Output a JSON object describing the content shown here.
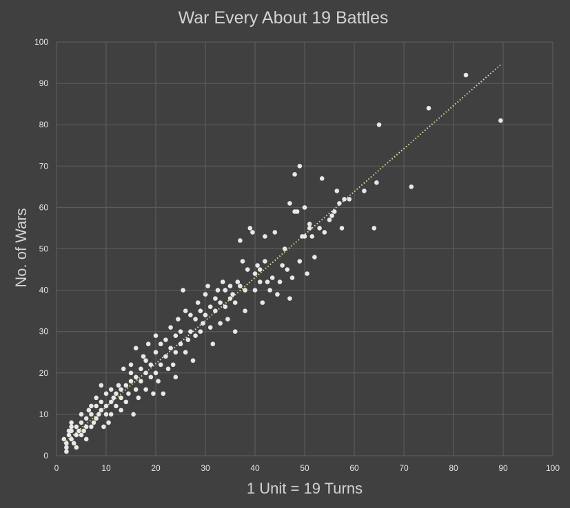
{
  "chart_data": {
    "type": "scatter",
    "title": "War Every About 19 Battles",
    "xlabel": "1 Unit = 19 Turns",
    "ylabel": "No. of Wars",
    "xlim": [
      0,
      100
    ],
    "ylim": [
      0,
      100
    ],
    "xticks": [
      "0",
      "10",
      "20",
      "30",
      "40",
      "50",
      "60",
      "70",
      "80",
      "90",
      "100"
    ],
    "yticks": [
      "0",
      "10",
      "20",
      "30",
      "40",
      "50",
      "60",
      "70",
      "80",
      "90",
      "100"
    ],
    "grid": true,
    "trendline": {
      "style": "dotted",
      "color": "#e6e0a0",
      "from": [
        1.5,
        3
      ],
      "to": [
        89.5,
        94.5
      ]
    },
    "point_color": "#e8e8e8",
    "series": [
      {
        "points": [
          [
            1.5,
            4
          ],
          [
            2,
            1
          ],
          [
            2,
            2
          ],
          [
            2,
            3
          ],
          [
            2.5,
            5
          ],
          [
            2.5,
            6
          ],
          [
            3,
            4
          ],
          [
            3,
            6
          ],
          [
            3,
            7
          ],
          [
            3,
            8
          ],
          [
            3.5,
            3
          ],
          [
            4,
            2
          ],
          [
            4,
            5
          ],
          [
            4,
            7
          ],
          [
            4.5,
            6
          ],
          [
            5,
            5
          ],
          [
            5,
            8
          ],
          [
            5,
            10
          ],
          [
            5.5,
            6
          ],
          [
            6,
            4
          ],
          [
            6,
            7
          ],
          [
            6,
            9
          ],
          [
            6.5,
            11
          ],
          [
            7,
            7
          ],
          [
            7,
            10
          ],
          [
            7,
            12
          ],
          [
            7.5,
            8
          ],
          [
            8,
            9
          ],
          [
            8,
            12
          ],
          [
            8,
            14
          ],
          [
            8.5,
            10
          ],
          [
            9,
            11
          ],
          [
            9,
            13
          ],
          [
            9,
            17
          ],
          [
            9.5,
            7
          ],
          [
            10,
            10
          ],
          [
            10,
            12
          ],
          [
            10,
            15
          ],
          [
            10.5,
            8
          ],
          [
            11,
            13
          ],
          [
            11,
            16
          ],
          [
            11,
            10
          ],
          [
            11.5,
            14
          ],
          [
            12,
            12
          ],
          [
            12,
            15
          ],
          [
            12.5,
            17
          ],
          [
            13,
            11
          ],
          [
            13,
            14
          ],
          [
            13,
            16
          ],
          [
            13.5,
            21
          ],
          [
            14,
            13
          ],
          [
            14,
            17
          ],
          [
            14.5,
            15
          ],
          [
            15,
            18
          ],
          [
            15,
            20
          ],
          [
            15,
            22
          ],
          [
            15.5,
            10
          ],
          [
            16,
            16
          ],
          [
            16,
            19
          ],
          [
            16,
            26
          ],
          [
            16.5,
            14
          ],
          [
            17,
            18
          ],
          [
            17,
            21
          ],
          [
            17.5,
            24
          ],
          [
            18,
            16
          ],
          [
            18,
            20
          ],
          [
            18,
            23
          ],
          [
            18.5,
            27
          ],
          [
            19,
            19
          ],
          [
            19,
            22
          ],
          [
            19.5,
            15
          ],
          [
            20,
            20
          ],
          [
            20,
            25
          ],
          [
            20,
            29
          ],
          [
            20.5,
            18
          ],
          [
            21,
            22
          ],
          [
            21,
            27
          ],
          [
            21.5,
            15
          ],
          [
            22,
            24
          ],
          [
            22,
            28
          ],
          [
            22.5,
            21
          ],
          [
            23,
            26
          ],
          [
            23,
            31
          ],
          [
            23.5,
            22
          ],
          [
            24,
            25
          ],
          [
            24,
            29
          ],
          [
            24,
            19
          ],
          [
            24.5,
            33
          ],
          [
            25,
            27
          ],
          [
            25,
            30
          ],
          [
            25.5,
            40
          ],
          [
            26,
            25
          ],
          [
            26,
            35
          ],
          [
            26.5,
            28
          ],
          [
            27,
            30
          ],
          [
            27,
            34
          ],
          [
            27.5,
            23
          ],
          [
            28,
            29
          ],
          [
            28,
            33
          ],
          [
            28.5,
            37
          ],
          [
            29,
            30
          ],
          [
            29,
            35
          ],
          [
            29.5,
            32
          ],
          [
            30,
            34
          ],
          [
            30,
            39
          ],
          [
            30.5,
            41
          ],
          [
            31,
            31
          ],
          [
            31,
            36
          ],
          [
            31.5,
            27
          ],
          [
            32,
            35
          ],
          [
            32,
            38
          ],
          [
            32.5,
            40
          ],
          [
            33,
            32
          ],
          [
            33,
            37
          ],
          [
            33.5,
            42
          ],
          [
            34,
            36
          ],
          [
            34,
            40
          ],
          [
            34.5,
            33
          ],
          [
            35,
            38
          ],
          [
            35,
            41
          ],
          [
            35.5,
            39
          ],
          [
            36,
            30
          ],
          [
            36,
            37
          ],
          [
            36.5,
            42
          ],
          [
            37,
            41
          ],
          [
            37,
            52
          ],
          [
            37.5,
            47
          ],
          [
            38,
            35
          ],
          [
            38,
            40
          ],
          [
            38.5,
            45
          ],
          [
            39,
            55
          ],
          [
            39.5,
            54
          ],
          [
            40,
            40
          ],
          [
            40,
            44
          ],
          [
            40.5,
            46
          ],
          [
            41,
            45
          ],
          [
            41,
            42
          ],
          [
            41.5,
            37
          ],
          [
            42,
            53
          ],
          [
            42,
            47
          ],
          [
            42.5,
            42
          ],
          [
            43,
            40
          ],
          [
            43.5,
            43
          ],
          [
            44,
            54
          ],
          [
            44.5,
            39
          ],
          [
            45,
            42
          ],
          [
            45.5,
            46
          ],
          [
            46,
            50
          ],
          [
            46.5,
            45
          ],
          [
            47,
            61
          ],
          [
            47,
            38
          ],
          [
            47.5,
            43
          ],
          [
            48,
            68
          ],
          [
            48,
            59
          ],
          [
            48.5,
            59
          ],
          [
            49,
            47
          ],
          [
            49,
            70
          ],
          [
            49.5,
            53
          ],
          [
            50,
            60
          ],
          [
            50,
            53
          ],
          [
            50.5,
            44
          ],
          [
            51,
            56
          ],
          [
            51,
            55
          ],
          [
            51.5,
            53
          ],
          [
            52,
            48
          ],
          [
            53,
            55
          ],
          [
            53.5,
            67
          ],
          [
            54,
            54
          ],
          [
            55,
            57
          ],
          [
            55.5,
            58
          ],
          [
            56,
            59
          ],
          [
            56.5,
            64
          ],
          [
            57,
            61
          ],
          [
            57.5,
            55
          ],
          [
            58,
            62
          ],
          [
            59,
            62
          ],
          [
            62,
            64
          ],
          [
            64,
            55
          ],
          [
            64.5,
            66
          ],
          [
            65,
            80
          ],
          [
            71.5,
            65
          ],
          [
            75,
            84
          ],
          [
            82.5,
            92
          ],
          [
            89.5,
            81
          ]
        ]
      }
    ]
  }
}
